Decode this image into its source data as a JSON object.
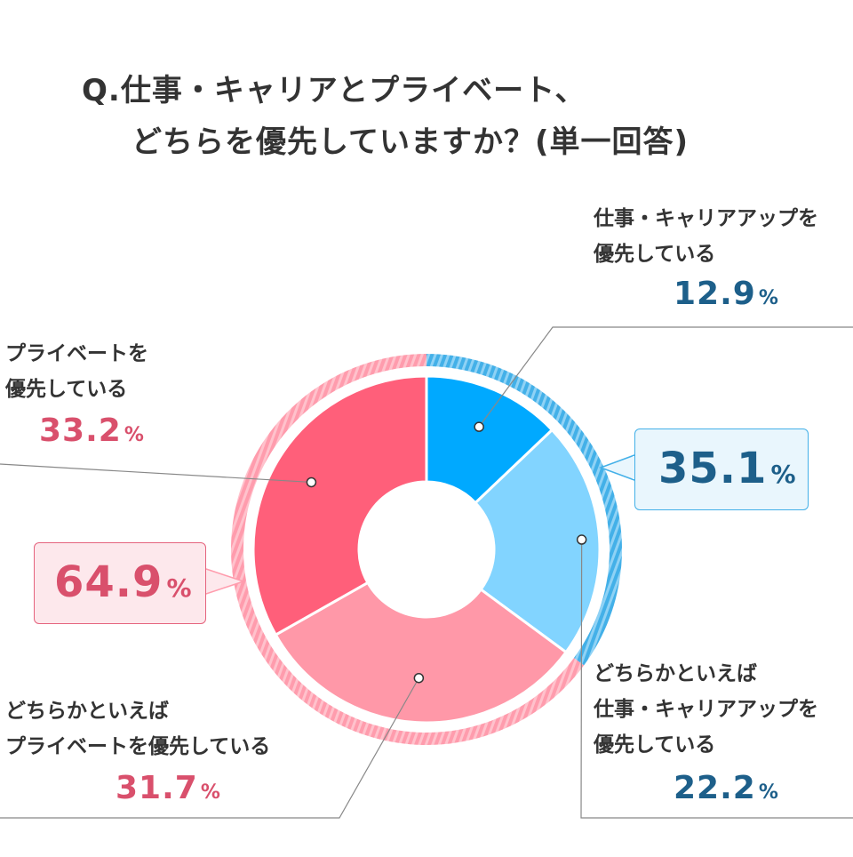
{
  "title": {
    "line1": "Q.仕事・キャリアとプライベート、",
    "line2": "どちらを優先していますか？(単一回答)"
  },
  "colors": {
    "career": "#00a9ff",
    "lean_career": "#82d4ff",
    "lean_private": "#ff98a8",
    "private": "#ff5f7a",
    "blue_ring": "#43b0e8",
    "pink_ring": "#ff9cad",
    "blue_text": "#1d5f8a",
    "pink_text": "#d9506c"
  },
  "chart_data": {
    "type": "pie",
    "variant": "donut",
    "series": [
      {
        "label_line1": "仕事・キャリアアップを",
        "label_line2": "優先している",
        "value": 12.9,
        "display": "12.9"
      },
      {
        "label_line1": "どちらかといえば",
        "label_line2": "仕事・キャリアアップを",
        "label_line3": "優先している",
        "value": 22.2,
        "display": "22.2"
      },
      {
        "label_line1": "どちらかといえば",
        "label_line2": "プライベートを優先している",
        "value": 31.7,
        "display": "31.7"
      },
      {
        "label_line1": "プライベートを",
        "label_line2": "優先している",
        "value": 33.2,
        "display": "33.2"
      }
    ],
    "unit": "%",
    "groups": [
      {
        "value": 35.1,
        "display": "35.1",
        "members": [
          0,
          1
        ]
      },
      {
        "value": 64.9,
        "display": "64.9",
        "members": [
          2,
          3
        ]
      }
    ]
  }
}
